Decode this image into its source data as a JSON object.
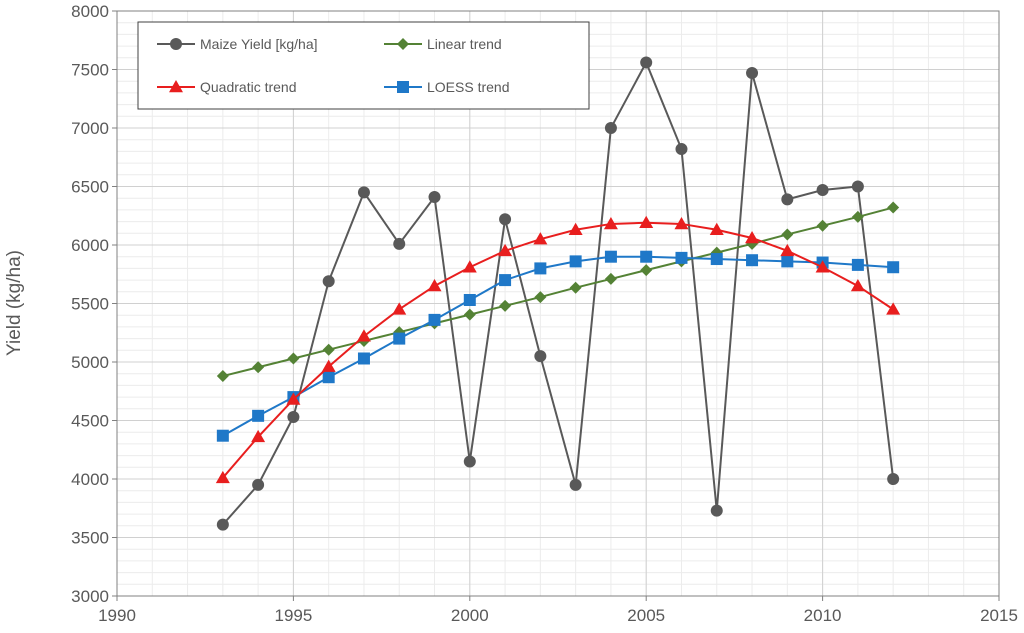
{
  "chart_data": {
    "type": "line",
    "title": "",
    "xlabel": "",
    "ylabel": "Yield (kg/ha)",
    "xlim": [
      1990,
      2015
    ],
    "ylim": [
      3000,
      8000
    ],
    "x_ticks": [
      1990,
      1995,
      2000,
      2005,
      2010,
      2015
    ],
    "y_ticks": [
      3000,
      3500,
      4000,
      4500,
      5000,
      5500,
      6000,
      6500,
      7000,
      7500,
      8000
    ],
    "x_minor_step": 1,
    "y_minor_step": 100,
    "grid": true,
    "legend_position": "top-left",
    "x": [
      1993,
      1994,
      1995,
      1996,
      1997,
      1998,
      1999,
      2000,
      2001,
      2002,
      2003,
      2004,
      2005,
      2006,
      2007,
      2008,
      2009,
      2010,
      2011,
      2012
    ],
    "series": [
      {
        "name": "Maize Yield [kg/ha]",
        "color": "#595959",
        "marker": "circle",
        "values": [
          3610,
          3950,
          4530,
          5690,
          6450,
          6010,
          6410,
          4150,
          6220,
          5050,
          3950,
          7000,
          7560,
          6820,
          3730,
          7470,
          6390,
          6470,
          6500,
          4000
        ]
      },
      {
        "name": "Linear trend",
        "color": "#548235",
        "marker": "diamond",
        "values": [
          4880,
          4955,
          5030,
          5105,
          5180,
          5255,
          5330,
          5405,
          5480,
          5555,
          5635,
          5710,
          5785,
          5860,
          5935,
          6010,
          6090,
          6165,
          6240,
          6320
        ]
      },
      {
        "name": "Quadratic trend",
        "color": "#e81e1e",
        "marker": "triangle",
        "values": [
          4010,
          4360,
          4680,
          4960,
          5220,
          5450,
          5650,
          5810,
          5950,
          6050,
          6130,
          6180,
          6190,
          6180,
          6130,
          6060,
          5950,
          5810,
          5650,
          5450
        ]
      },
      {
        "name": "LOESS trend",
        "color": "#1f78c8",
        "marker": "square",
        "values": [
          4370,
          4540,
          4700,
          4870,
          5030,
          5200,
          5360,
          5530,
          5700,
          5800,
          5860,
          5900,
          5900,
          5890,
          5880,
          5870,
          5860,
          5850,
          5830,
          5810
        ]
      }
    ]
  }
}
